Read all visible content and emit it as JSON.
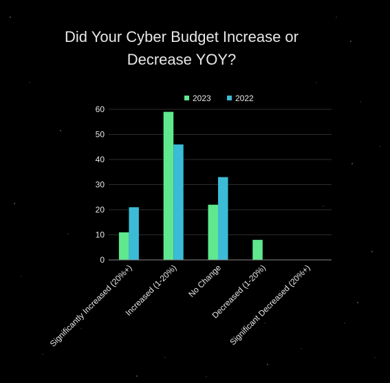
{
  "chart_data": {
    "type": "bar",
    "title": "Did Your Cyber Budget Increase or Decrease YOY?",
    "title_lines": [
      "Did Your Cyber Budget Increase or",
      "Decrease YOY?"
    ],
    "categories": [
      "Significantly Increased (20%+)",
      "Increased (1-20%)",
      "No Change",
      "Decreased (1-20%)",
      "Significant Decreased (20%+)"
    ],
    "series": [
      {
        "name": "2023",
        "values": [
          11,
          59,
          22,
          8,
          0
        ],
        "color": "#5fe88e"
      },
      {
        "name": "2022",
        "values": [
          21,
          46,
          33,
          0,
          0
        ],
        "color": "#3bbbd6"
      }
    ],
    "ylim": [
      0,
      60
    ],
    "yticks": [
      0,
      10,
      20,
      30,
      40,
      50,
      60
    ],
    "grid": true,
    "legend_position": "top",
    "colors": {
      "background": "#000000",
      "text": "#e8e8e8",
      "grid": "#2e2e2e",
      "axis": "#8a8a8a"
    }
  }
}
